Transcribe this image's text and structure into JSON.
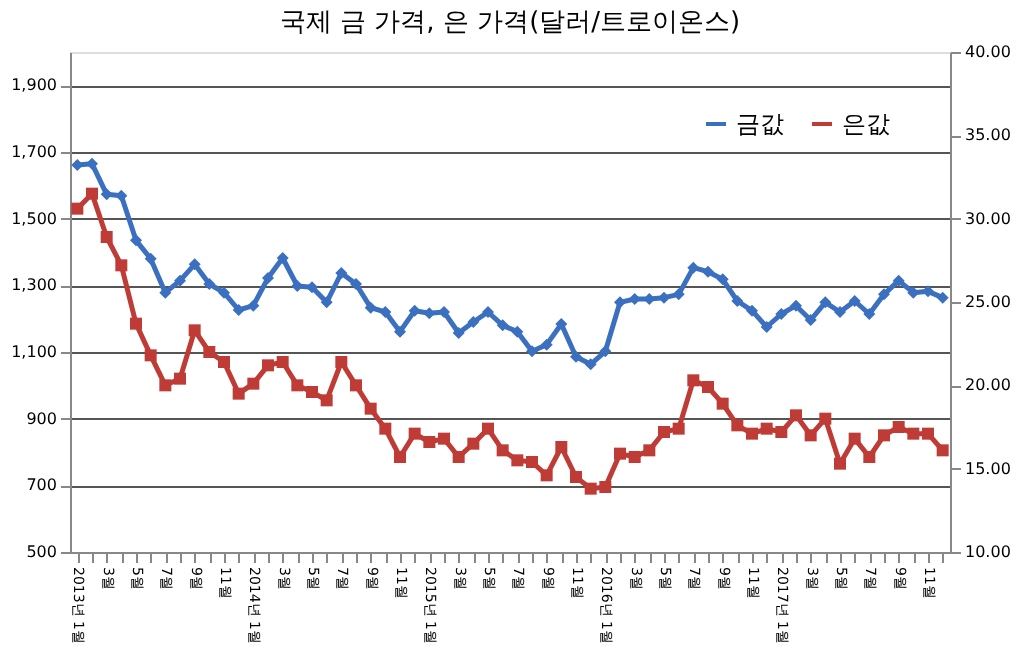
{
  "chart_data": {
    "type": "line",
    "title": "국제 금 가격, 은 가격(달러/트로이온스)",
    "categories": [
      "2013년 1월",
      null,
      "3월",
      null,
      "5월",
      null,
      "7월",
      null,
      "9월",
      null,
      "11월",
      null,
      "2014년 1월",
      null,
      "3월",
      null,
      "5월",
      null,
      "7월",
      null,
      "9월",
      null,
      "11월",
      null,
      "2015년 1월",
      null,
      "3월",
      null,
      "5월",
      null,
      "7월",
      null,
      "9월",
      null,
      "11월",
      null,
      "2016년 1월",
      null,
      "3월",
      null,
      "5월",
      null,
      "7월",
      null,
      "9월",
      null,
      "11월",
      null,
      "2017년 1월",
      null,
      "3월",
      null,
      "5월",
      null,
      "7월",
      null,
      "9월",
      null,
      "11월",
      null
    ],
    "series": [
      {
        "name": "금값",
        "color": "#3b6fbf",
        "marker": "diamond",
        "values": [
          1661,
          1665,
          1573,
          1569,
          1435,
          1380,
          1278,
          1314,
          1363,
          1304,
          1278,
          1226,
          1239,
          1322,
          1382,
          1298,
          1294,
          1249,
          1337,
          1304,
          1233,
          1220,
          1161,
          1224,
          1216,
          1220,
          1157,
          1190,
          1220,
          1180,
          1161,
          1102,
          1122,
          1184,
          1086,
          1063,
          1102,
          1249,
          1259,
          1259,
          1263,
          1273,
          1353,
          1341,
          1318,
          1253,
          1224,
          1175,
          1214,
          1239,
          1196,
          1249,
          1220,
          1253,
          1214,
          1273,
          1314,
          1278,
          1282,
          1263
        ]
      },
      {
        "name": "은값",
        "color": "#be3b36",
        "marker": "square",
        "axis": "y2",
        "values": [
          30.6,
          31.5,
          28.9,
          27.2,
          23.7,
          21.8,
          20.0,
          20.4,
          23.3,
          22.0,
          21.4,
          19.5,
          20.1,
          21.2,
          21.4,
          20.0,
          19.6,
          19.1,
          21.4,
          20.0,
          18.6,
          17.4,
          15.7,
          17.1,
          16.6,
          16.8,
          15.7,
          16.5,
          17.4,
          16.1,
          15.5,
          15.4,
          14.6,
          16.3,
          14.5,
          13.8,
          13.9,
          15.9,
          15.7,
          16.1,
          17.2,
          17.4,
          20.3,
          19.9,
          18.9,
          17.6,
          17.1,
          17.4,
          17.2,
          18.2,
          17.0,
          18.0,
          15.3,
          16.8,
          15.7,
          17.0,
          17.5,
          17.1,
          17.1,
          16.1
        ]
      }
    ],
    "ylim": [
      500,
      2000
    ],
    "yticks": [
      500,
      700,
      900,
      {
        "value": 1100,
        "label": "1,100"
      },
      {
        "value": 1300,
        "label": "1,300"
      },
      {
        "value": 1500,
        "label": "1,500"
      },
      {
        "value": 1700,
        "label": "1,700"
      },
      {
        "value": 1900,
        "label": "1,900"
      }
    ],
    "y2lim": [
      10,
      40
    ],
    "y2ticks": [
      {
        "value": 10,
        "label": "10.00"
      },
      {
        "value": 15,
        "label": "15.00"
      },
      {
        "value": 20,
        "label": "20.00"
      },
      {
        "value": 25,
        "label": "25.00"
      },
      {
        "value": 30,
        "label": "30.00"
      },
      {
        "value": 35,
        "label": "35.00"
      },
      {
        "value": 40,
        "label": "40.00"
      }
    ],
    "grid": "y",
    "legend": "top right",
    "line_style": "solid"
  }
}
